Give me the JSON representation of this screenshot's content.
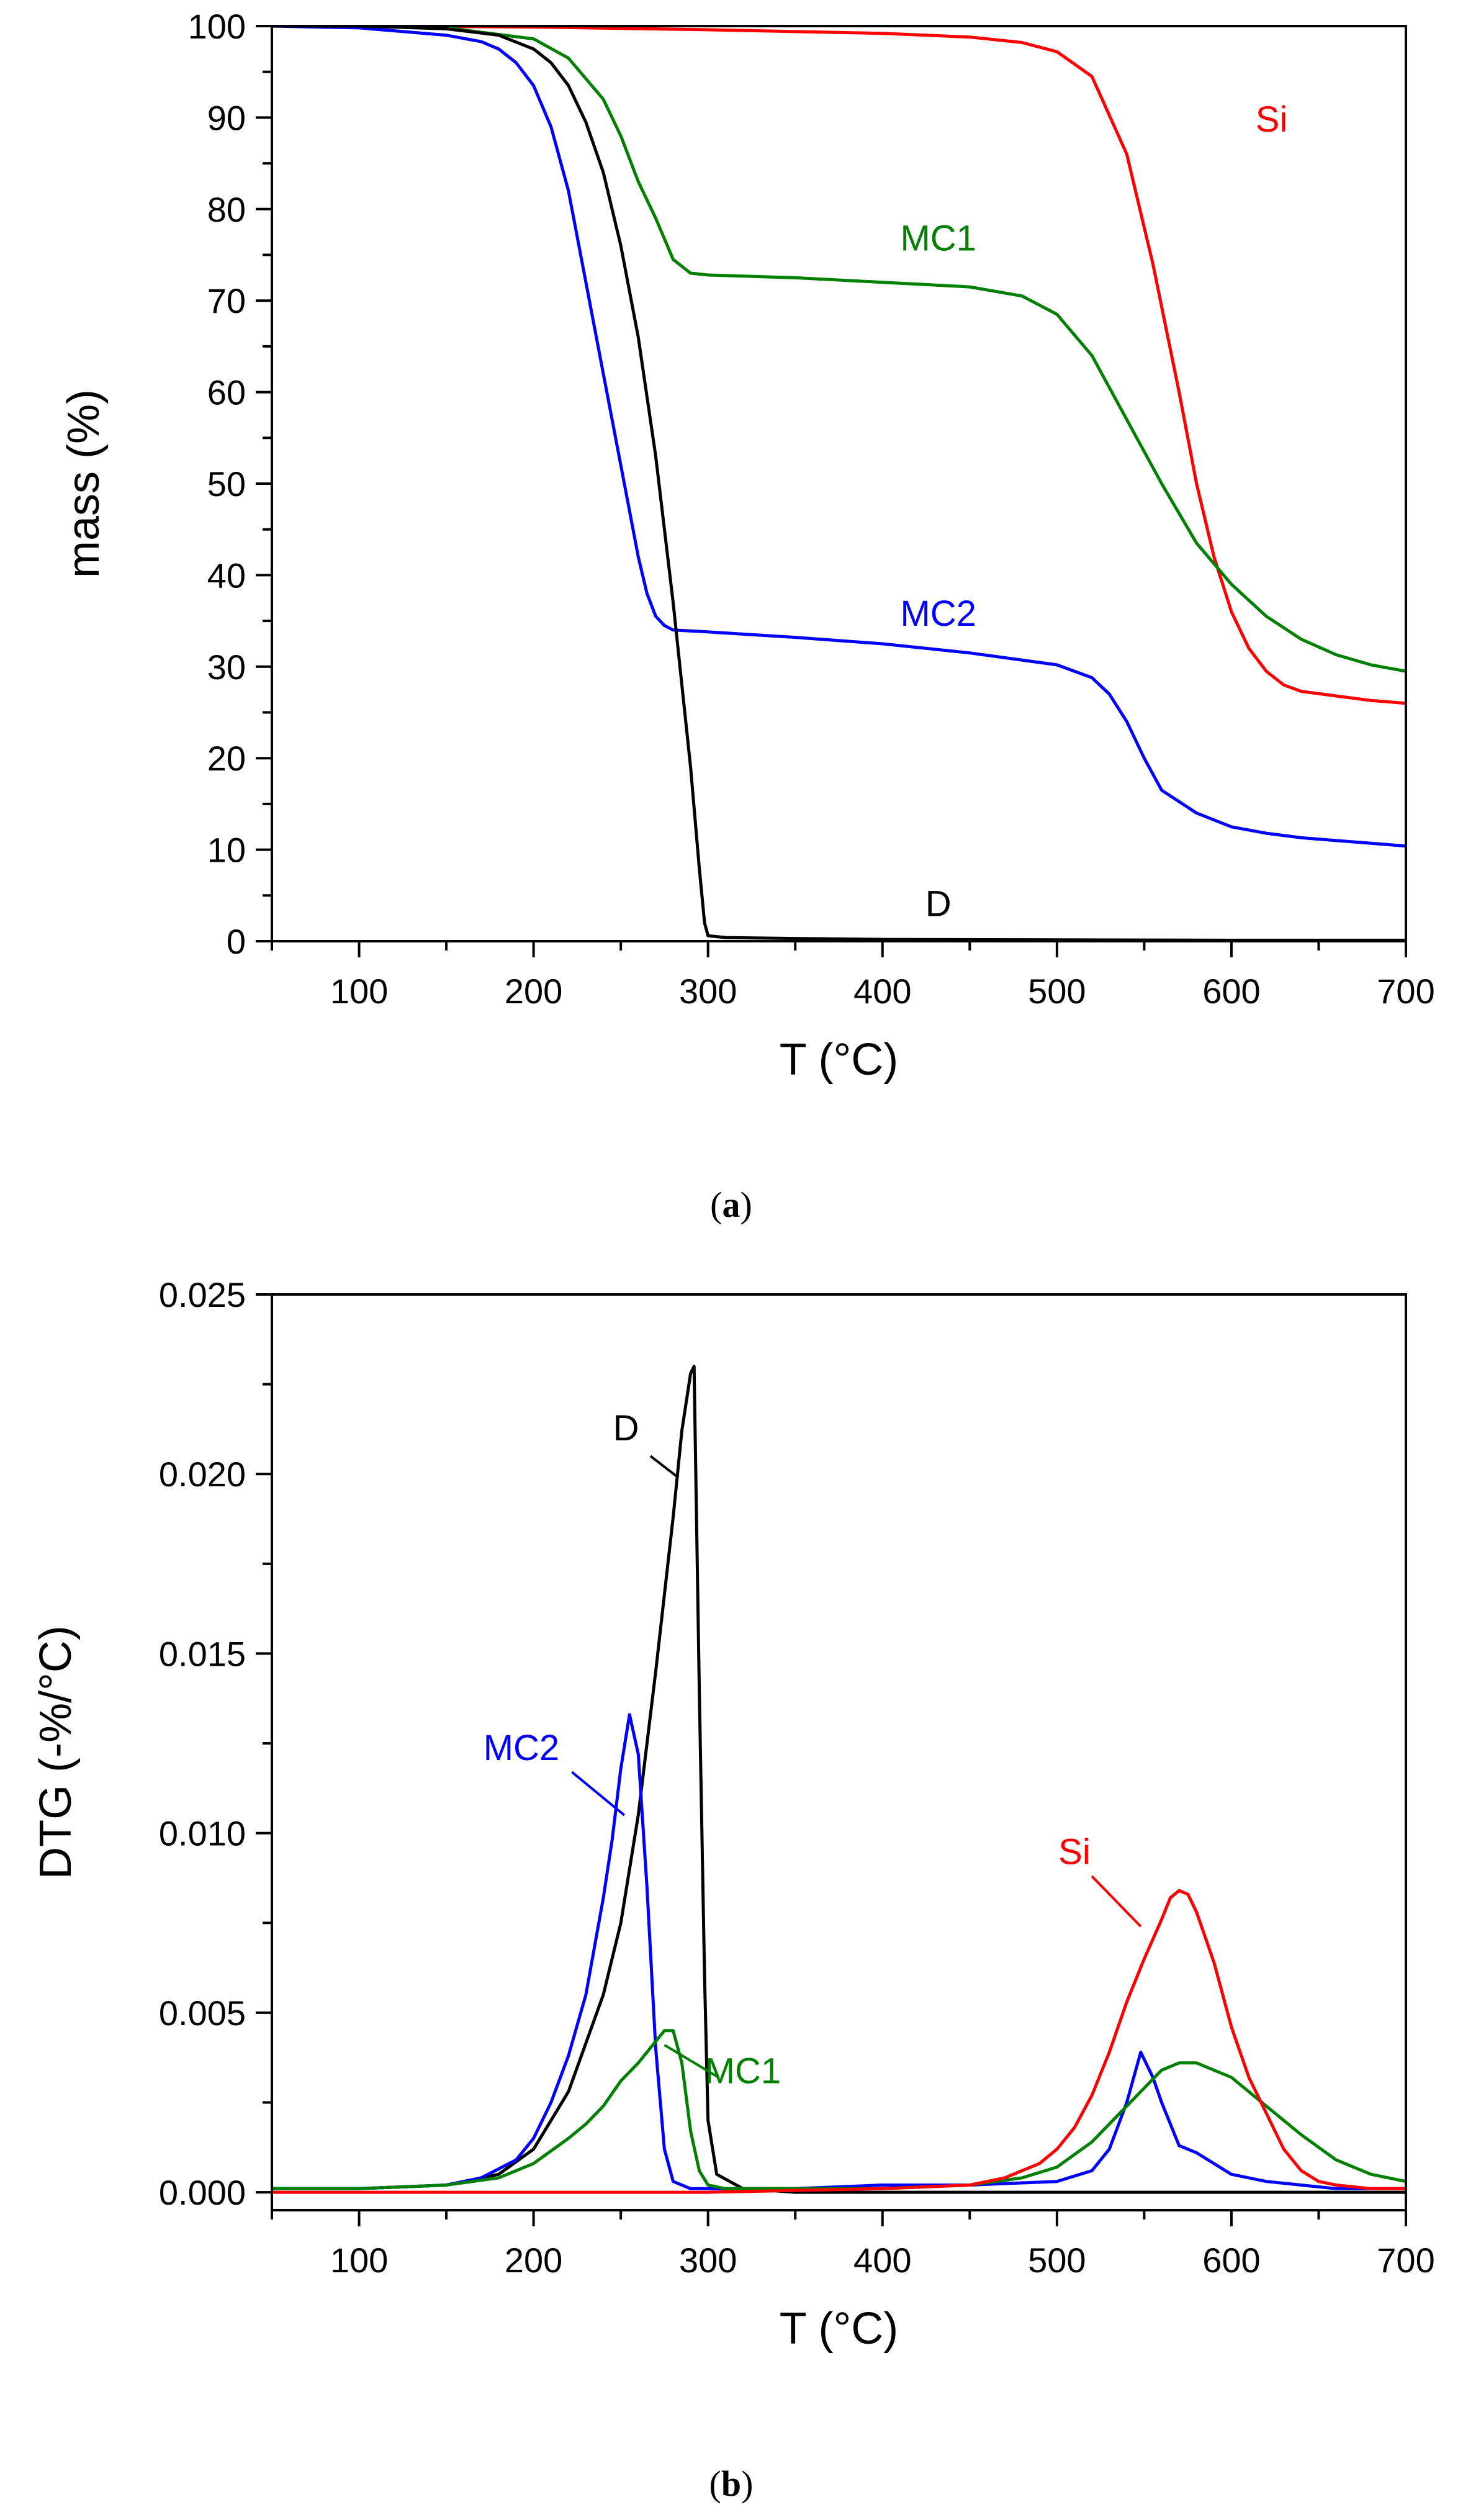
{
  "chart_data": [
    {
      "type": "line",
      "panel_label": "a",
      "xlabel": "T (°C)",
      "ylabel": "mass (%)",
      "xlim": [
        50,
        700
      ],
      "ylim": [
        0,
        100
      ],
      "xticks": [
        100,
        200,
        300,
        400,
        500,
        600,
        700
      ],
      "yticks": [
        0,
        10,
        20,
        30,
        40,
        50,
        60,
        70,
        80,
        90,
        100
      ],
      "grid": false,
      "series": [
        {
          "name": "Si",
          "color": "#ff0000",
          "x": [
            50,
            100,
            200,
            300,
            400,
            450,
            480,
            500,
            520,
            540,
            555,
            570,
            580,
            590,
            600,
            610,
            620,
            630,
            640,
            660,
            680,
            700
          ],
          "y": [
            100,
            100,
            99.9,
            99.6,
            99.2,
            98.8,
            98.2,
            97.2,
            94.5,
            86,
            74,
            60,
            50,
            42,
            36,
            32,
            29.5,
            28,
            27.3,
            26.8,
            26.3,
            26
          ]
        },
        {
          "name": "MC1",
          "color": "#008000",
          "x": [
            50,
            100,
            150,
            200,
            220,
            240,
            250,
            260,
            270,
            280,
            290,
            300,
            350,
            400,
            450,
            480,
            500,
            520,
            540,
            560,
            580,
            600,
            620,
            640,
            660,
            680,
            700
          ],
          "y": [
            100,
            100,
            99.8,
            98.6,
            96.5,
            92,
            88,
            83,
            79,
            74.5,
            73,
            72.8,
            72.5,
            72,
            71.5,
            70.5,
            68.5,
            64,
            57,
            50,
            43.5,
            39,
            35.5,
            33,
            31.3,
            30.2,
            29.5
          ]
        },
        {
          "name": "MC2",
          "color": "#0000ff",
          "x": [
            50,
            100,
            150,
            170,
            180,
            190,
            200,
            210,
            220,
            230,
            240,
            250,
            260,
            265,
            270,
            275,
            280,
            300,
            350,
            400,
            450,
            500,
            520,
            530,
            540,
            550,
            560,
            580,
            600,
            620,
            640,
            660,
            680,
            700
          ],
          "y": [
            100,
            99.8,
            99,
            98.3,
            97.5,
            96,
            93.5,
            89,
            82,
            72,
            62,
            52,
            42,
            38,
            35.5,
            34.5,
            34,
            33.8,
            33.2,
            32.5,
            31.5,
            30.2,
            28.8,
            27,
            24,
            20,
            16.5,
            14,
            12.5,
            11.8,
            11.3,
            11,
            10.7,
            10.4
          ]
        },
        {
          "name": "D",
          "color": "#000000",
          "x": [
            50,
            100,
            150,
            180,
            200,
            210,
            220,
            230,
            240,
            250,
            260,
            270,
            280,
            290,
            295,
            298,
            300,
            310,
            350,
            400,
            500,
            600,
            700
          ],
          "y": [
            100,
            100,
            99.7,
            99,
            97.5,
            96,
            93.5,
            89.5,
            84,
            76,
            66,
            53,
            37,
            19,
            8,
            2,
            0.6,
            0.4,
            0.3,
            0.2,
            0.15,
            0.1,
            0.1
          ]
        }
      ],
      "annotations": [
        {
          "text": "Si",
          "color": "#ff0000",
          "x": 623,
          "y": 89.5
        },
        {
          "text": "MC1",
          "color": "#008000",
          "x": 432,
          "y": 76.5
        },
        {
          "text": "MC2",
          "color": "#0000ff",
          "x": 432,
          "y": 35.5
        },
        {
          "text": "D",
          "color": "#000000",
          "x": 432,
          "y": 3.8
        }
      ]
    },
    {
      "type": "line",
      "panel_label": "b",
      "xlabel": "T (°C)",
      "ylabel": "DTG (-%/°C)",
      "xlim": [
        50,
        700
      ],
      "ylim": [
        -0.0005,
        0.025
      ],
      "xticks": [
        100,
        200,
        300,
        400,
        500,
        600,
        700
      ],
      "yticks": [
        "0.000",
        "0.005",
        "0.010",
        "0.015",
        "0.020",
        "0.025"
      ],
      "grid": false,
      "series": [
        {
          "name": "D",
          "color": "#000000",
          "x": [
            50,
            100,
            150,
            180,
            200,
            220,
            240,
            250,
            260,
            270,
            280,
            285,
            290,
            292,
            295,
            298,
            300,
            305,
            320,
            350,
            400,
            450,
            700
          ],
          "y": [
            0.0001,
            0.0001,
            0.0002,
            0.0005,
            0.0012,
            0.0028,
            0.0055,
            0.0075,
            0.0105,
            0.0145,
            0.0188,
            0.0212,
            0.0228,
            0.023,
            0.014,
            0.006,
            0.002,
            0.0005,
            0.0001,
            0.0,
            0.0,
            0.0,
            0.0
          ]
        },
        {
          "name": "MC2",
          "color": "#0000ff",
          "x": [
            50,
            100,
            150,
            170,
            190,
            200,
            210,
            220,
            230,
            240,
            245,
            250,
            255,
            260,
            265,
            270,
            275,
            280,
            290,
            300,
            350,
            400,
            450,
            500,
            520,
            530,
            540,
            548,
            555,
            560,
            570,
            580,
            600,
            620,
            640,
            660,
            680,
            700
          ],
          "y": [
            0.0001,
            0.0001,
            0.0002,
            0.0004,
            0.0009,
            0.0015,
            0.0025,
            0.0038,
            0.0055,
            0.0082,
            0.0098,
            0.0118,
            0.0133,
            0.0122,
            0.0085,
            0.004,
            0.0012,
            0.0003,
            0.0001,
            0.0001,
            0.0001,
            0.0002,
            0.0002,
            0.0003,
            0.0006,
            0.0012,
            0.0025,
            0.0039,
            0.0032,
            0.0025,
            0.0013,
            0.0011,
            0.0005,
            0.0003,
            0.0002,
            0.0001,
            0.0001,
            0.0001
          ]
        },
        {
          "name": "MC1",
          "color": "#008000",
          "x": [
            50,
            100,
            150,
            180,
            200,
            220,
            230,
            240,
            250,
            260,
            270,
            275,
            280,
            285,
            290,
            295,
            300,
            310,
            350,
            400,
            450,
            480,
            500,
            520,
            540,
            560,
            570,
            580,
            600,
            620,
            640,
            660,
            680,
            700
          ],
          "y": [
            0.0001,
            0.0001,
            0.0002,
            0.0004,
            0.0008,
            0.0015,
            0.0019,
            0.0024,
            0.0031,
            0.0036,
            0.0042,
            0.0045,
            0.0045,
            0.0036,
            0.0017,
            0.0006,
            0.0002,
            0.0001,
            0.0001,
            0.0001,
            0.0002,
            0.0004,
            0.0007,
            0.0014,
            0.0024,
            0.0034,
            0.0036,
            0.0036,
            0.0032,
            0.0024,
            0.0016,
            0.0009,
            0.0005,
            0.0003
          ]
        },
        {
          "name": "Si",
          "color": "#ff0000",
          "x": [
            50,
            100,
            200,
            300,
            400,
            450,
            470,
            490,
            500,
            510,
            520,
            530,
            540,
            550,
            560,
            565,
            570,
            575,
            580,
            590,
            600,
            610,
            620,
            630,
            640,
            650,
            660,
            680,
            700
          ],
          "y": [
            0.0,
            0.0,
            0.0,
            0.0,
            0.0001,
            0.0002,
            0.0004,
            0.0008,
            0.0012,
            0.0018,
            0.0027,
            0.0039,
            0.0053,
            0.0065,
            0.0076,
            0.0082,
            0.0084,
            0.0083,
            0.0078,
            0.0064,
            0.0046,
            0.0032,
            0.0022,
            0.0012,
            0.0006,
            0.0003,
            0.0002,
            0.0001,
            0.0001
          ]
        }
      ],
      "annotations": [
        {
          "text": "D",
          "color": "#000000",
          "x": 253,
          "y": 0.0212,
          "leader": [
            [
              267,
              0.0205
            ],
            [
              283,
              0.0199
            ]
          ]
        },
        {
          "text": "MC2",
          "color": "#0000ff",
          "x": 193,
          "y": 0.0123,
          "leader": [
            [
              222,
              0.0117
            ],
            [
              252,
              0.0105
            ]
          ]
        },
        {
          "text": "MC1",
          "color": "#008000",
          "x": 320,
          "y": 0.0033,
          "leader": [
            [
              306,
              0.0032
            ],
            [
              275,
              0.0041
            ]
          ]
        },
        {
          "text": "Si",
          "color": "#ff0000",
          "x": 510,
          "y": 0.0094,
          "leader": [
            [
              520,
              0.0088
            ],
            [
              548,
              0.0074
            ]
          ]
        }
      ]
    }
  ],
  "captions": [
    {
      "open": "(",
      "letter": "a",
      "close": ")"
    },
    {
      "open": "(",
      "letter": "b",
      "close": ")"
    }
  ]
}
